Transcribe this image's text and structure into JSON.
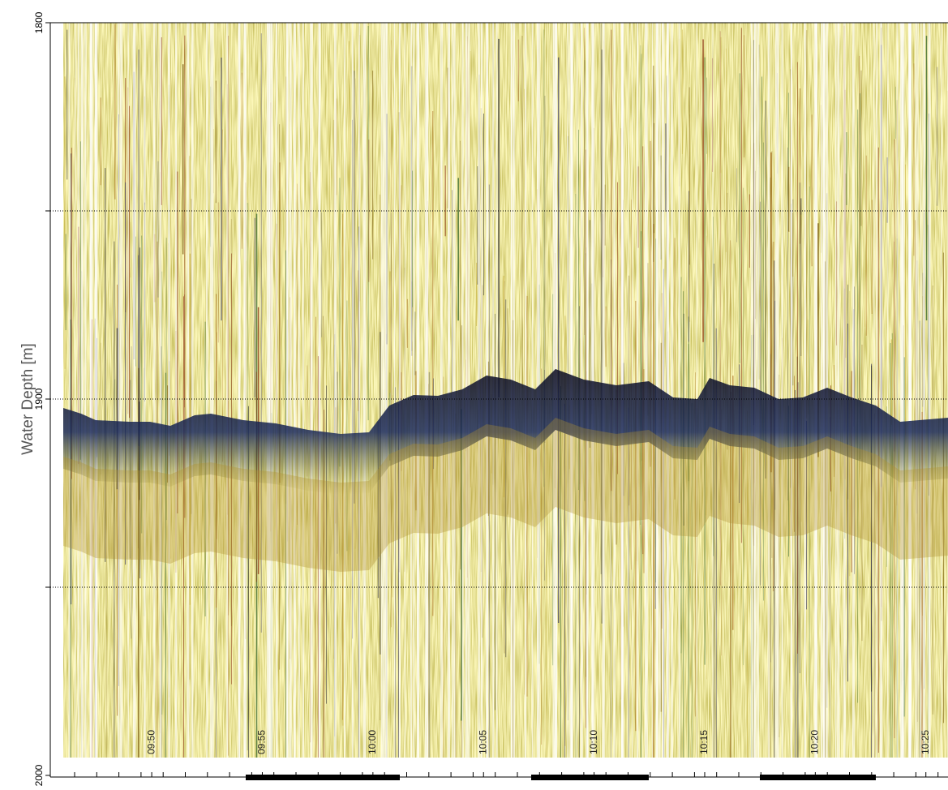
{
  "chart_data": {
    "type": "echogram",
    "y_label": "Water Depth [m]",
    "ylim": [
      1800,
      2000
    ],
    "y_inverted": true,
    "yticks": [
      1800,
      1900,
      2000
    ],
    "grid_lines": [
      1850,
      1900,
      1950
    ],
    "xlim": [
      "09:46",
      "10:26"
    ],
    "xticks": [
      "09:50",
      "09:55",
      "10:00",
      "10:05",
      "10:10",
      "10:15",
      "10:20",
      "10:25"
    ]
  }
}
